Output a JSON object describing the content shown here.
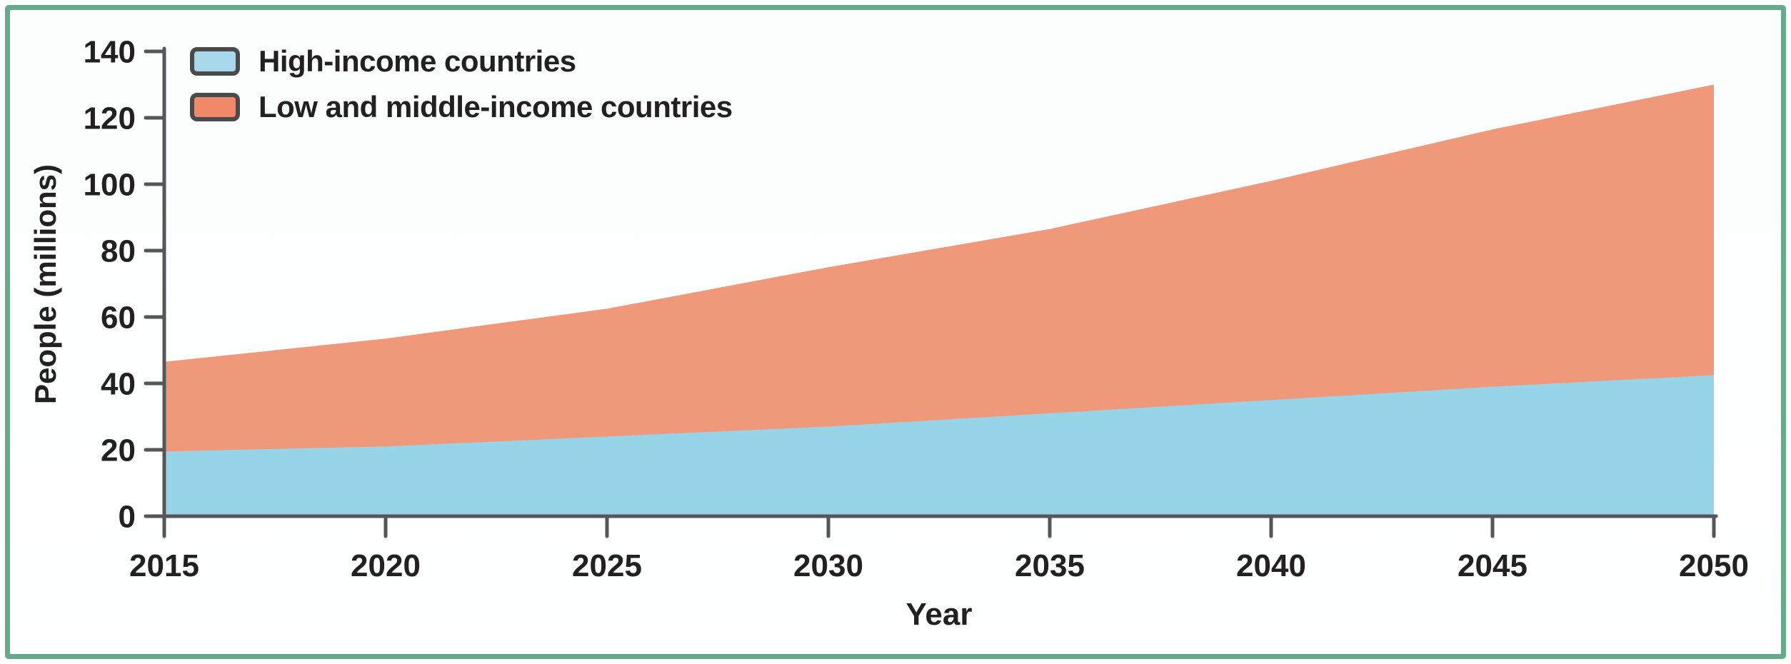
{
  "figure": {
    "frame_border_color": "#67aa8b",
    "background_color": "#ffffff"
  },
  "style": {
    "axis_color": "#55565a",
    "text_color": "#232021",
    "legend_swatch_border_color": "#4a4a4c",
    "legend_swatch_blue": "#a7d8ea",
    "legend_swatch_salmon": "#f0886a"
  },
  "chart_data": {
    "type": "area",
    "stacked": true,
    "title": "",
    "xlabel": "Year",
    "ylabel": "People (millions)",
    "x": [
      2015,
      2020,
      2025,
      2030,
      2035,
      2040,
      2045,
      2050
    ],
    "series": [
      {
        "name": "High-income countries",
        "color": "#97d4e7",
        "values": [
          19.5,
          21,
          24,
          27,
          31,
          35,
          39,
          42.5
        ]
      },
      {
        "name": "Low and middle-income countries",
        "color": "#f0997a",
        "values": [
          27,
          32.5,
          38.5,
          48,
          55.5,
          66,
          77.5,
          87.5
        ]
      }
    ],
    "totals": [
      46.5,
      53.5,
      62.5,
      75,
      86.5,
      101,
      116.5,
      130
    ],
    "xlim": [
      2015,
      2050
    ],
    "ylim": [
      0,
      140
    ],
    "x_ticks": [
      2015,
      2020,
      2025,
      2030,
      2035,
      2040,
      2045,
      2050
    ],
    "y_ticks": [
      0,
      20,
      40,
      60,
      80,
      100,
      120,
      140
    ],
    "grid": false,
    "legend_position": "top-left"
  }
}
